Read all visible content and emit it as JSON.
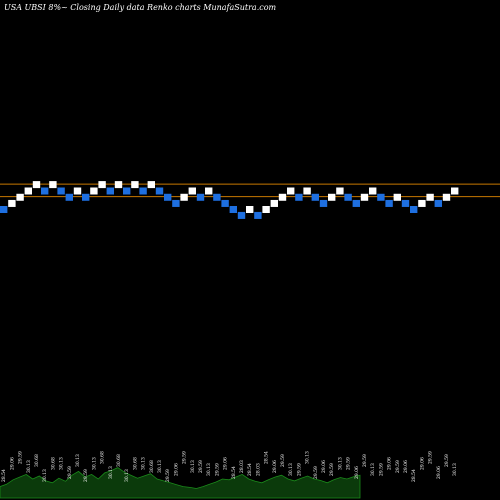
{
  "chart_data": {
    "type": "renko",
    "title": "USA UBSI 8%~ Closing Daily data Renko charts MunafaSutra.com",
    "colors": {
      "background": "#000000",
      "up_brick": "#ffffff",
      "down_brick": "#1e6fe0",
      "reference_line": "#c87800",
      "volume_area": "#0b3a0b",
      "volume_line": "#1a8a1a"
    },
    "reference_lines": [
      30.72,
      29.65
    ],
    "ylim": [
      4.0,
      45.0
    ],
    "bricks": [
      {
        "dir": "down",
        "price": 28.54,
        "label": "28.54"
      },
      {
        "dir": "up",
        "price": 29.06,
        "label": "29.06"
      },
      {
        "dir": "up",
        "price": 29.59,
        "label": "29.59"
      },
      {
        "dir": "up",
        "price": 30.13,
        "label": "30.13"
      },
      {
        "dir": "up",
        "price": 30.68,
        "label": "30.68"
      },
      {
        "dir": "down",
        "price": 30.13,
        "label": "30.13"
      },
      {
        "dir": "up",
        "price": 30.68,
        "label": "30.68"
      },
      {
        "dir": "down",
        "price": 30.13,
        "label": "30.13"
      },
      {
        "dir": "down",
        "price": 29.59,
        "label": "29.59"
      },
      {
        "dir": "up",
        "price": 30.13,
        "label": "30.13"
      },
      {
        "dir": "down",
        "price": 29.59,
        "label": "29.59"
      },
      {
        "dir": "up",
        "price": 30.13,
        "label": "30.13"
      },
      {
        "dir": "up",
        "price": 30.68,
        "label": "30.68"
      },
      {
        "dir": "down",
        "price": 30.13,
        "label": "30.13"
      },
      {
        "dir": "up",
        "price": 30.68,
        "label": "30.68"
      },
      {
        "dir": "down",
        "price": 30.13,
        "label": "30.13"
      },
      {
        "dir": "up",
        "price": 30.68,
        "label": "30.68"
      },
      {
        "dir": "down",
        "price": 30.13,
        "label": "30.13"
      },
      {
        "dir": "up",
        "price": 30.68,
        "label": "30.68"
      },
      {
        "dir": "down",
        "price": 30.13,
        "label": "30.13"
      },
      {
        "dir": "down",
        "price": 29.59,
        "label": "29.59"
      },
      {
        "dir": "down",
        "price": 29.06,
        "label": "29.06"
      },
      {
        "dir": "up",
        "price": 29.59,
        "label": "29.59"
      },
      {
        "dir": "up",
        "price": 30.13,
        "label": "30.13"
      },
      {
        "dir": "down",
        "price": 29.59,
        "label": "29.59"
      },
      {
        "dir": "up",
        "price": 30.13,
        "label": "30.13"
      },
      {
        "dir": "down",
        "price": 29.59,
        "label": "29.59"
      },
      {
        "dir": "down",
        "price": 29.06,
        "label": "29.06"
      },
      {
        "dir": "down",
        "price": 28.54,
        "label": "28.54"
      },
      {
        "dir": "down",
        "price": 28.03,
        "label": "28.03"
      },
      {
        "dir": "up",
        "price": 28.54,
        "label": "28.54"
      },
      {
        "dir": "down",
        "price": 28.03,
        "label": "28.03"
      },
      {
        "dir": "up",
        "price": 28.54,
        "label": "28.54"
      },
      {
        "dir": "up",
        "price": 29.06,
        "label": "29.06"
      },
      {
        "dir": "up",
        "price": 29.59,
        "label": "29.59"
      },
      {
        "dir": "up",
        "price": 30.13,
        "label": "30.13"
      },
      {
        "dir": "down",
        "price": 29.59,
        "label": "29.59"
      },
      {
        "dir": "up",
        "price": 30.13,
        "label": "30.13"
      },
      {
        "dir": "down",
        "price": 29.59,
        "label": "29.59"
      },
      {
        "dir": "down",
        "price": 29.06,
        "label": "29.06"
      },
      {
        "dir": "up",
        "price": 29.59,
        "label": "29.59"
      },
      {
        "dir": "up",
        "price": 30.13,
        "label": "30.13"
      },
      {
        "dir": "down",
        "price": 29.59,
        "label": "29.59"
      },
      {
        "dir": "down",
        "price": 29.06,
        "label": "29.06"
      },
      {
        "dir": "up",
        "price": 29.59,
        "label": "29.59"
      },
      {
        "dir": "up",
        "price": 30.13,
        "label": "30.13"
      },
      {
        "dir": "down",
        "price": 29.59,
        "label": "29.59"
      },
      {
        "dir": "down",
        "price": 29.06,
        "label": "29.06"
      },
      {
        "dir": "up",
        "price": 29.59,
        "label": "29.59"
      },
      {
        "dir": "down",
        "price": 29.06,
        "label": "29.06"
      },
      {
        "dir": "down",
        "price": 28.54,
        "label": "28.54"
      },
      {
        "dir": "up",
        "price": 29.06,
        "label": "29.06"
      },
      {
        "dir": "up",
        "price": 29.59,
        "label": "29.59"
      },
      {
        "dir": "down",
        "price": 29.06,
        "label": "29.06"
      },
      {
        "dir": "up",
        "price": 29.59,
        "label": "29.59"
      },
      {
        "dir": "up",
        "price": 30.13,
        "label": "30.13"
      }
    ],
    "volume_profile": [
      0.3,
      0.36,
      0.48,
      0.55,
      0.62,
      0.5,
      0.58,
      0.45,
      0.4,
      0.52,
      0.44,
      0.6,
      0.7,
      0.55,
      0.62,
      0.5,
      0.66,
      0.72,
      0.8,
      0.68,
      0.6,
      0.52,
      0.58,
      0.64,
      0.5,
      0.45,
      0.4,
      0.35,
      0.3,
      0.28,
      0.25,
      0.3,
      0.36,
      0.42,
      0.5,
      0.48,
      0.55,
      0.62,
      0.5,
      0.44,
      0.4,
      0.48,
      0.55,
      0.6,
      0.5,
      0.45,
      0.52,
      0.58,
      0.5,
      0.46,
      0.4,
      0.48,
      0.54,
      0.5,
      0.56,
      0.6
    ]
  }
}
